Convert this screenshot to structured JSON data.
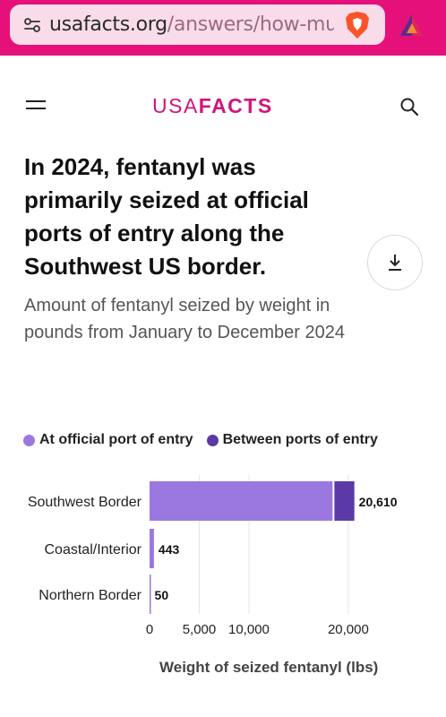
{
  "browser": {
    "url_host": "usafacts.org",
    "url_path": "/answers/how-much"
  },
  "header": {
    "logo_regular": "USA",
    "logo_bold": "FACTS"
  },
  "article": {
    "title": "In 2024, fentanyl was primarily seized at official ports of entry along the Southwest US border.",
    "subtitle": "Amount of fentanyl seized by weight in pounds from January to December 2024"
  },
  "colors": {
    "brand": "#e5107a",
    "at_port": "#9b78e0",
    "between_ports": "#5b3aa8"
  },
  "chart_data": {
    "type": "bar",
    "orientation": "horizontal",
    "stacked": true,
    "categories": [
      "Southwest Border",
      "Coastal/Interior",
      "Northern Border"
    ],
    "series": [
      {
        "name": "At official port of entry",
        "values": [
          18600,
          443,
          50
        ]
      },
      {
        "name": "Between ports of entry",
        "values": [
          2010,
          0,
          0
        ]
      }
    ],
    "totals": [
      "20,610",
      "443",
      "50"
    ],
    "xlabel": "Weight of seized fentanyl (lbs)",
    "xticks": [
      0,
      5000,
      10000,
      20000
    ],
    "xtick_labels": [
      "0",
      "5,000",
      "10,000",
      "20,000"
    ],
    "xlim": [
      0,
      21000
    ],
    "legend_position": "top",
    "grid": true
  }
}
